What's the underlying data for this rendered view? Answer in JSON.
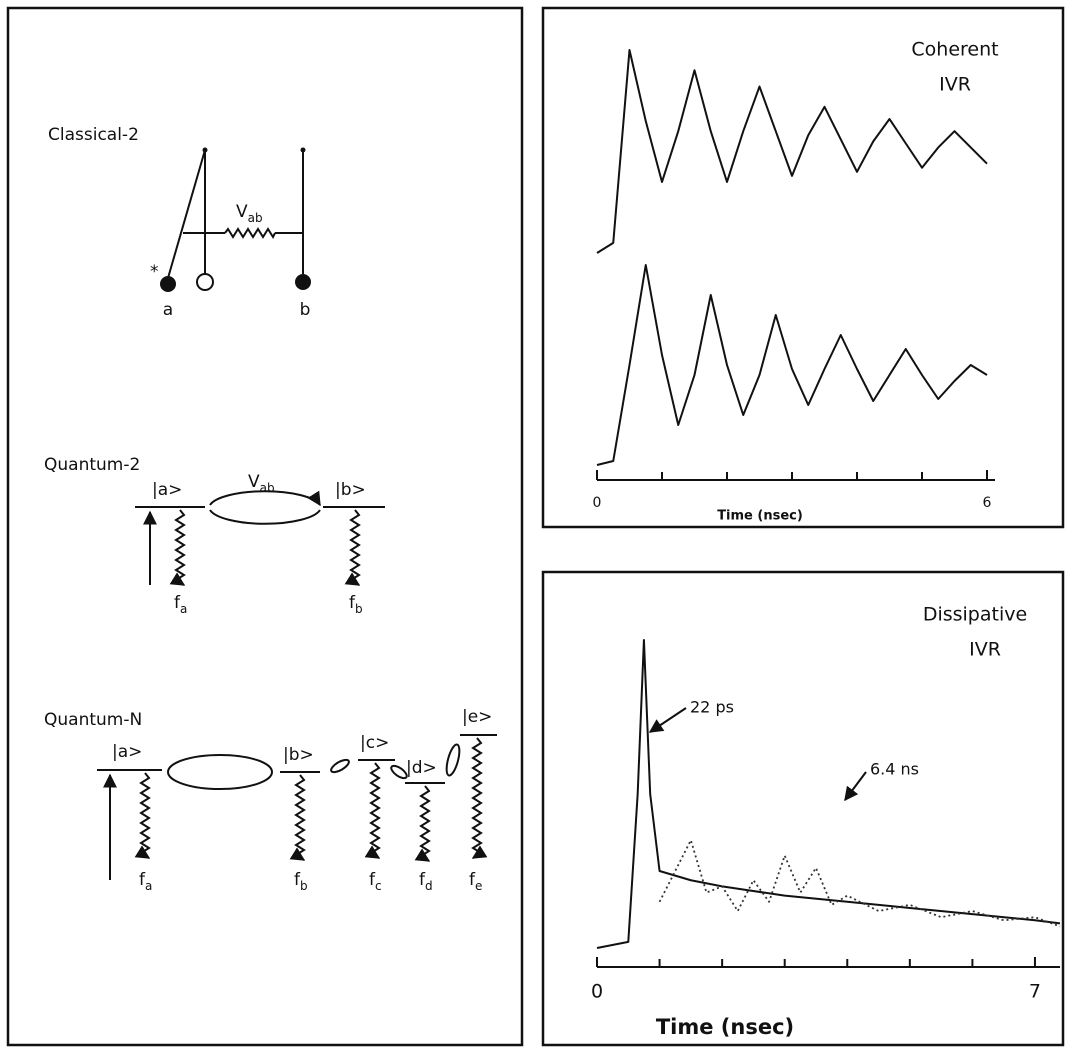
{
  "left_panel": {
    "classical": {
      "title": "Classical-2",
      "coupling": {
        "main": "V",
        "sub": "ab"
      },
      "star": "*",
      "a": "a",
      "b": "b"
    },
    "quantum_2": {
      "title": "Quantum-2",
      "coupling": {
        "main": "V",
        "sub": "ab"
      },
      "state_a": "|a>",
      "state_b": "|b>",
      "decay_a": {
        "main": "f",
        "sub": "a"
      },
      "decay_b": {
        "main": "f",
        "sub": "b"
      }
    },
    "quantum_n": {
      "title": "Quantum-N",
      "state_a": "|a>",
      "state_b": "|b>",
      "state_c": "|c>",
      "state_d": "|d>",
      "state_e": "|e>",
      "decay_a": {
        "main": "f",
        "sub": "a"
      },
      "decay_b": {
        "main": "f",
        "sub": "b"
      },
      "decay_c": {
        "main": "f",
        "sub": "c"
      },
      "decay_d": {
        "main": "f",
        "sub": "d"
      },
      "decay_e": {
        "main": "f",
        "sub": "e"
      }
    }
  },
  "chart_data": [
    {
      "type": "line",
      "title": "Coherent",
      "subtitle": "IVR",
      "xlabel": "Time (nsec)",
      "xlim": [
        0,
        6
      ],
      "xticks": [
        0,
        6
      ],
      "minor_xticks": [
        1,
        2,
        3,
        4,
        5
      ],
      "ylim": [
        0,
        1
      ],
      "x": [
        0,
        0.25,
        0.5,
        0.75,
        1.0,
        1.25,
        1.5,
        1.75,
        2.0,
        2.25,
        2.5,
        2.75,
        3.0,
        3.25,
        3.5,
        3.75,
        4.0,
        4.25,
        4.5,
        4.75,
        5.0,
        5.25,
        5.5,
        5.75,
        6.0
      ],
      "series": [
        {
          "color": "#111111",
          "values": [
            0,
            0.05,
            1.0,
            0.65,
            0.35,
            0.6,
            0.9,
            0.6,
            0.35,
            0.6,
            0.82,
            0.6,
            0.38,
            0.58,
            0.72,
            0.56,
            0.4,
            0.55,
            0.66,
            0.54,
            0.42,
            0.52,
            0.6,
            0.52,
            0.44
          ]
        },
        {
          "color": "#111111",
          "values": [
            0,
            0.02,
            0.5,
            1.0,
            0.55,
            0.2,
            0.45,
            0.85,
            0.5,
            0.25,
            0.45,
            0.75,
            0.48,
            0.3,
            0.48,
            0.65,
            0.48,
            0.32,
            0.45,
            0.58,
            0.45,
            0.33,
            0.42,
            0.5,
            0.45
          ]
        }
      ]
    },
    {
      "type": "line",
      "title": "Dissipative",
      "subtitle": "IVR",
      "xlabel": "Time (nsec)",
      "annotations": [
        "22 ps",
        "6.4 ns"
      ],
      "xlim": [
        0,
        7.4
      ],
      "xticks": [
        0,
        7
      ],
      "minor_xticks": [
        1,
        2,
        3,
        4,
        5,
        6
      ],
      "ylim": [
        0,
        1
      ],
      "series": [
        {
          "color": "#111111",
          "style": "solid",
          "x": [
            0,
            0.5,
            0.65,
            0.75,
            0.85,
            1.0,
            1.5,
            2,
            3,
            4,
            5,
            6,
            7,
            7.4
          ],
          "values": [
            0,
            0.02,
            0.5,
            1.0,
            0.5,
            0.25,
            0.22,
            0.2,
            0.17,
            0.15,
            0.13,
            0.11,
            0.09,
            0.08
          ]
        },
        {
          "color": "#333333",
          "style": "dotted",
          "x": [
            1.0,
            1.25,
            1.5,
            1.75,
            2.0,
            2.25,
            2.5,
            2.75,
            3.0,
            3.25,
            3.5,
            3.75,
            4.0,
            4.5,
            5,
            5.5,
            6,
            6.5,
            7,
            7.4
          ],
          "values": [
            0.15,
            0.25,
            0.35,
            0.18,
            0.2,
            0.12,
            0.22,
            0.15,
            0.3,
            0.18,
            0.26,
            0.14,
            0.17,
            0.12,
            0.14,
            0.1,
            0.12,
            0.09,
            0.1,
            0.07
          ]
        }
      ]
    }
  ]
}
